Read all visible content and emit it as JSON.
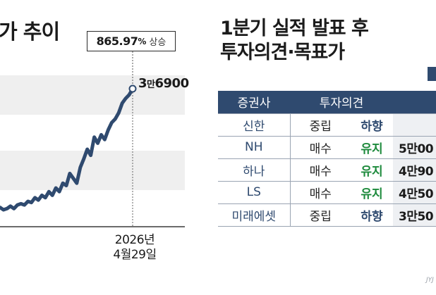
{
  "left_chart": {
    "title": "가 추이",
    "callout": {
      "number": "865.97",
      "percent_sign": "%",
      "word": "상승"
    },
    "last_value": {
      "big1": "3",
      "small": "만",
      "big2": "6900"
    },
    "date_label": {
      "line1": "2026년",
      "line2": "4월29일"
    }
  },
  "chart_data": {
    "type": "line",
    "title": "가 추이",
    "xlabel": "",
    "ylabel": "",
    "grid": true,
    "legend": "none",
    "series_color": "#2f4a6f",
    "values": [
      0.02,
      0.0,
      0.01,
      0.03,
      0.01,
      0.04,
      0.05,
      0.04,
      0.07,
      0.06,
      0.1,
      0.08,
      0.12,
      0.1,
      0.15,
      0.12,
      0.18,
      0.15,
      0.22,
      0.2,
      0.3,
      0.26,
      0.22,
      0.35,
      0.42,
      0.5,
      0.45,
      0.6,
      0.55,
      0.62,
      0.58,
      0.66,
      0.72,
      0.75,
      0.8,
      0.88,
      0.92,
      0.95,
      1.0
    ],
    "annotation": {
      "last_point": "3만6900",
      "change": "865.97% 상승",
      "date": "2026년 4월29일"
    }
  },
  "right_panel": {
    "title_line1": "1분기 실적 발표 후",
    "title_line2": "투자의견·목표가",
    "table": {
      "headers": [
        "증권사",
        "투자의견",
        ""
      ],
      "rows": [
        {
          "firm": "신한",
          "opinion": "중립",
          "change": "하향",
          "change_kind": "down",
          "target": ""
        },
        {
          "firm": "NH",
          "opinion": "매수",
          "change": "유지",
          "change_kind": "keep",
          "target": "5만00"
        },
        {
          "firm": "하나",
          "opinion": "매수",
          "change": "유지",
          "change_kind": "keep",
          "target": "4만90"
        },
        {
          "firm": "LS",
          "opinion": "매수",
          "change": "유지",
          "change_kind": "keep",
          "target": "4만50"
        },
        {
          "firm": "미래에셋",
          "opinion": "중립",
          "change": "하향",
          "change_kind": "down",
          "target": "3만50"
        }
      ]
    }
  },
  "credit": "JYJ"
}
